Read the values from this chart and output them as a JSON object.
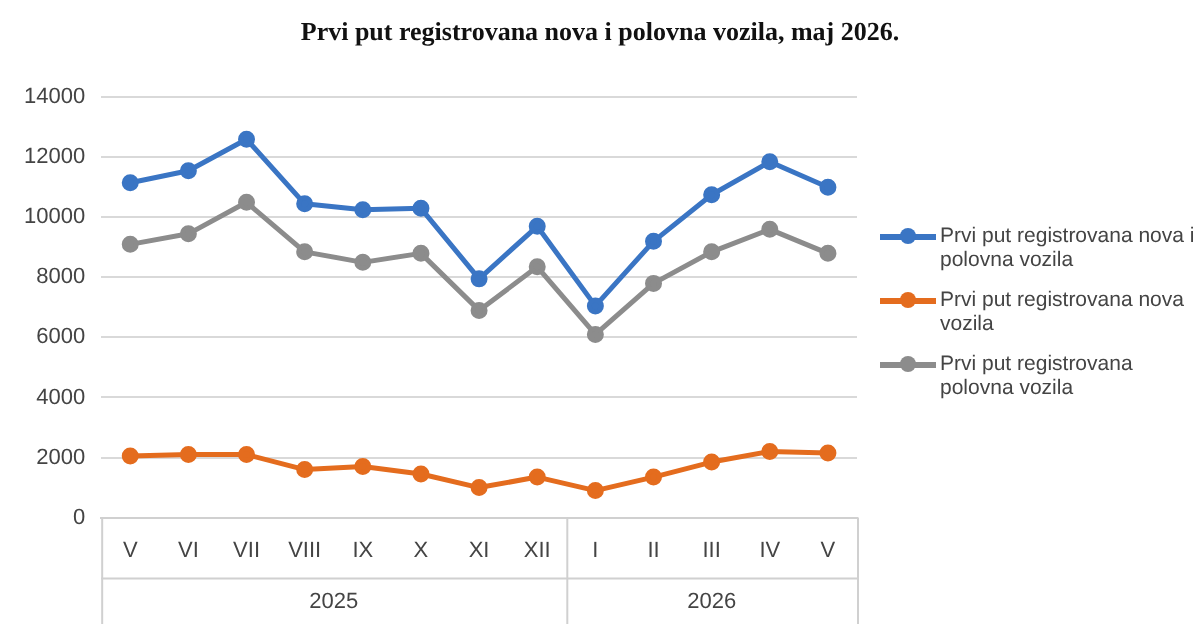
{
  "chart_data": {
    "type": "line",
    "title": "Prvi put registrovana nova i polovna vozila, maj 2026.",
    "categories": [
      "V",
      "VI",
      "VII",
      "VIII",
      "IX",
      "X",
      "XI",
      "XII",
      "I",
      "II",
      "III",
      "IV",
      "V"
    ],
    "series": [
      {
        "name": "Prvi put registrovana nova i polovna vozila",
        "color": "#3a75c4",
        "values": [
          11150,
          11550,
          12600,
          10450,
          10250,
          10300,
          7950,
          9700,
          7050,
          9200,
          10750,
          11850,
          11000
        ]
      },
      {
        "name": "Prvi put registrovana nova vozila",
        "color": "#e46c1e",
        "values": [
          2050,
          2100,
          2100,
          1600,
          1700,
          1450,
          1000,
          1350,
          900,
          1350,
          1850,
          2200,
          2150
        ]
      },
      {
        "name": "Prvi put registrovana polovna vozila",
        "color": "#8c8c8c",
        "values": [
          9100,
          9450,
          10500,
          8850,
          8500,
          8800,
          6900,
          8350,
          6100,
          7800,
          8850,
          9600,
          8800
        ]
      }
    ],
    "annotations": [
      "2025",
      "2026"
    ],
    "ylim": [
      0,
      14000
    ],
    "yticks": [
      0,
      2000,
      4000,
      6000,
      8000,
      10000,
      12000,
      14000
    ],
    "grid": "y",
    "legend": "right",
    "marker": "circle",
    "line_style": "solid"
  }
}
